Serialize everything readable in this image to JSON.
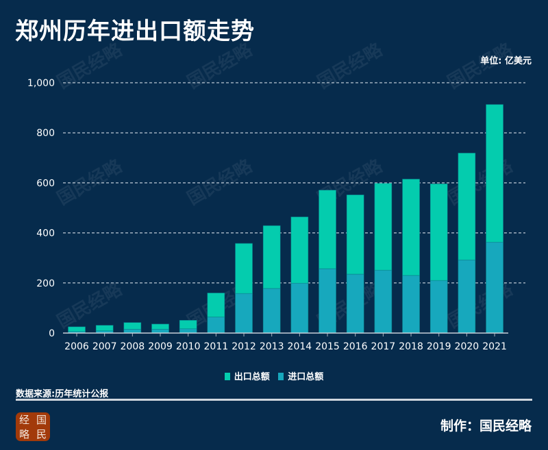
{
  "title": "郑州历年进出口额走势",
  "unit": "单位: 亿美元",
  "source": "数据来源:历年统计公报",
  "credit": "制作：国民经略",
  "logo": [
    "经",
    "国",
    "略",
    "民"
  ],
  "watermark": "国民经略",
  "colors": {
    "background": "#062b4c",
    "export": "#04ccae",
    "import": "#17a8bd"
  },
  "chart_data": {
    "type": "bar",
    "stacked": true,
    "categories": [
      "2006",
      "2007",
      "2008",
      "2009",
      "2010",
      "2011",
      "2012",
      "2013",
      "2014",
      "2015",
      "2016",
      "2017",
      "2018",
      "2019",
      "2020",
      "2021"
    ],
    "series": [
      {
        "name": "进口总额",
        "values": [
          6,
          9,
          15,
          15,
          17,
          64,
          158,
          178,
          199,
          257,
          235,
          251,
          230,
          210,
          292,
          363
        ]
      },
      {
        "name": "出口总额",
        "values": [
          19,
          22,
          27,
          21,
          34,
          96,
          200,
          251,
          265,
          314,
          317,
          347,
          385,
          386,
          427,
          550
        ]
      }
    ],
    "legend": [
      "出口总额",
      "进口总额"
    ],
    "ylim": [
      0,
      1000
    ],
    "yticks": [
      "0",
      "200",
      "400",
      "600",
      "800",
      "1,000"
    ],
    "grid": true,
    "legend_position": "bottom"
  }
}
